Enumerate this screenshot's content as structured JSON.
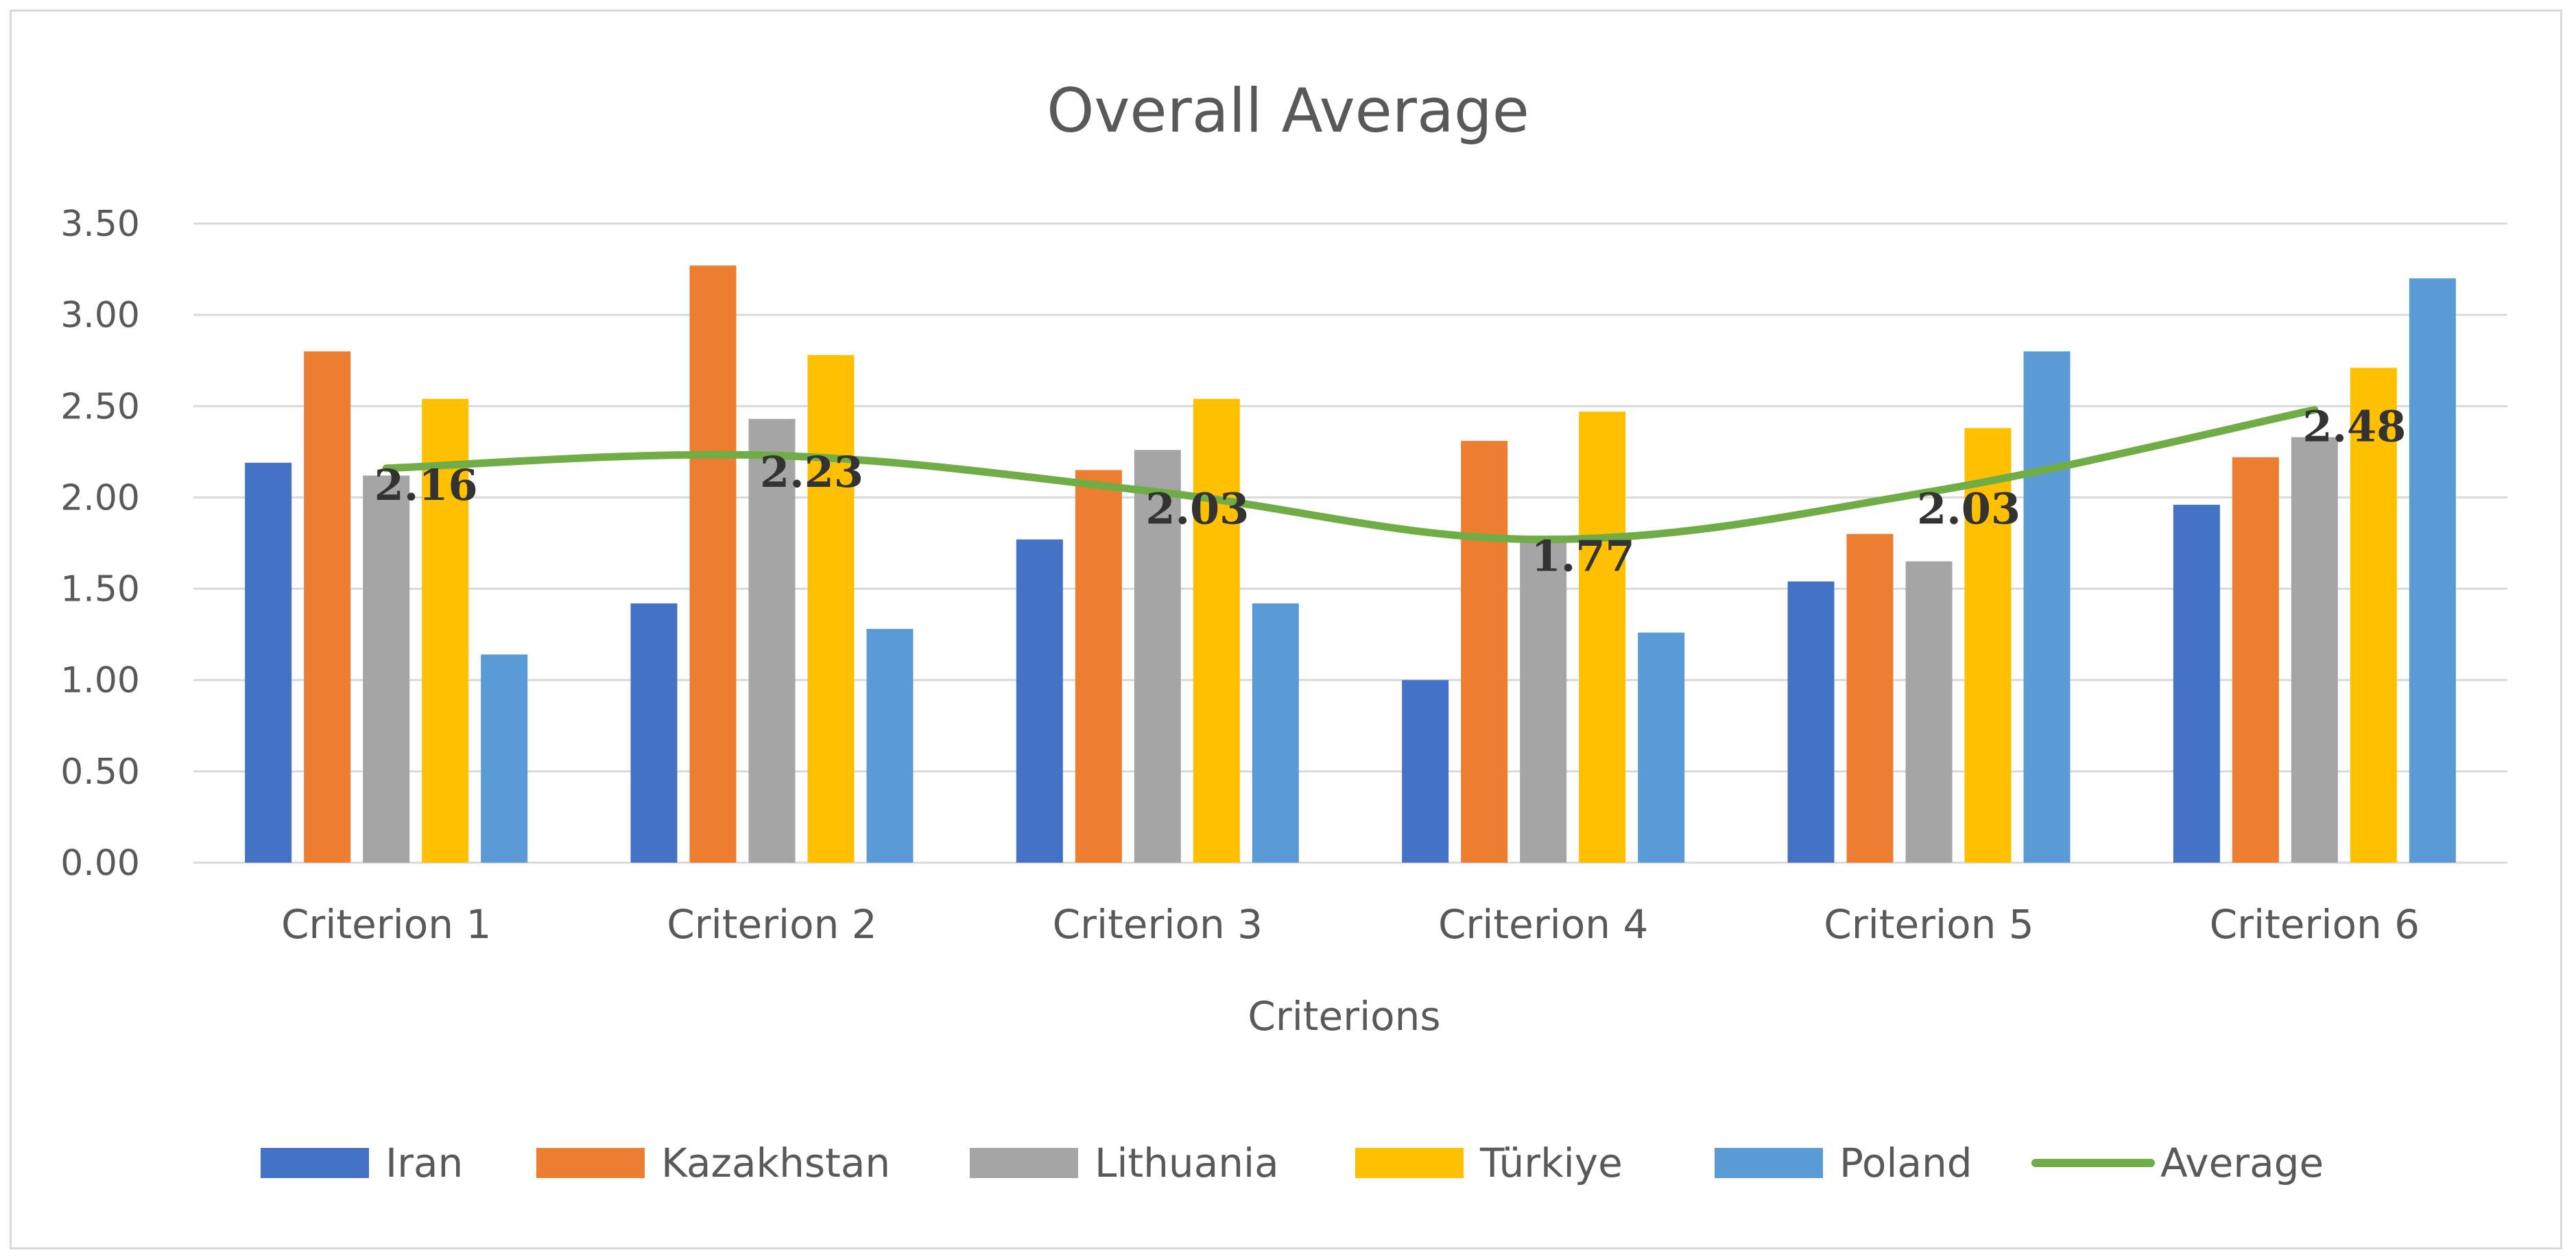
{
  "chart_data": {
    "type": "bar",
    "title": "Overall Average",
    "xlabel": "Criterions",
    "ylabel": "",
    "ylim": [
      0,
      3.5
    ],
    "yticks": [
      "0.00",
      "0.50",
      "1.00",
      "1.50",
      "2.00",
      "2.50",
      "3.00",
      "3.50"
    ],
    "grid": true,
    "legend_position": "bottom",
    "categories": [
      "Criterion 1",
      "Criterion 2",
      "Criterion 3",
      "Criterion 4",
      "Criterion 5",
      "Criterion 6"
    ],
    "series": [
      {
        "name": "Iran",
        "color": "#4472C4",
        "values": [
          2.19,
          1.42,
          1.77,
          1.0,
          1.54,
          1.96
        ]
      },
      {
        "name": "Kazakhstan",
        "color": "#ED7D31",
        "values": [
          2.8,
          3.27,
          2.15,
          2.31,
          1.8,
          2.22
        ]
      },
      {
        "name": "Lithuania",
        "color": "#A5A5A5",
        "values": [
          2.12,
          2.43,
          2.26,
          1.77,
          1.65,
          2.33
        ]
      },
      {
        "name": "Türkiye",
        "color": "#FFC000",
        "values": [
          2.54,
          2.78,
          2.54,
          2.47,
          2.38,
          2.71
        ]
      },
      {
        "name": "Poland",
        "color": "#5B9BD5",
        "values": [
          1.14,
          1.28,
          1.42,
          1.26,
          2.8,
          3.2
        ]
      }
    ],
    "average": {
      "name": "Average",
      "color": "#70AD47",
      "type": "line",
      "values": [
        2.16,
        2.23,
        2.03,
        1.77,
        2.03,
        2.48
      ],
      "labels": [
        "2.16",
        "2.23",
        "2.03",
        "1.77",
        "2.03",
        "2.48"
      ]
    }
  }
}
